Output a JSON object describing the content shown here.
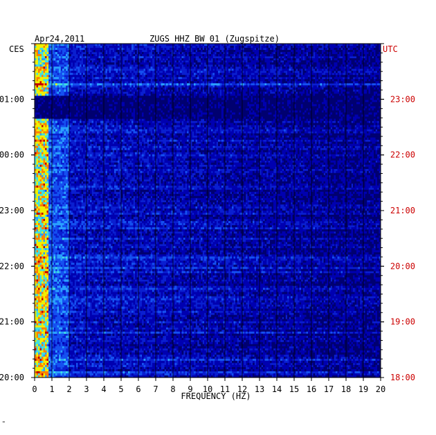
{
  "header": {
    "date": "Apr24,2011",
    "title": "ZUGS HHZ BW 01 (Zugspitze)",
    "left_zone": "CES",
    "right_zone": "UTC"
  },
  "footer_mark": "\"",
  "colors": {
    "background_blue": "#0a1fd0",
    "axis": "#000000",
    "utc_labels": "#cc0000",
    "local_labels": "#000000"
  },
  "chart_data": {
    "type": "heatmap",
    "title": "ZUGS HHZ BW 01 (Zugspitze)",
    "xlabel": "FREQUENCY (HZ)",
    "ylabel": "",
    "xlim": [
      0,
      20
    ],
    "x_ticks": [
      "0",
      "1",
      "2",
      "3",
      "4",
      "5",
      "6",
      "7",
      "8",
      "9",
      "10",
      "11",
      "12",
      "13",
      "14",
      "15",
      "16",
      "17",
      "18",
      "19",
      "20"
    ],
    "y_ticks_left": [
      "01:00",
      "00:00",
      "23:00",
      "22:00",
      "21:00",
      "20:00"
    ],
    "y_ticks_right": [
      "23:00",
      "22:00",
      "21:00",
      "20:00",
      "19:00",
      "18:00"
    ],
    "time_span_hours": 6,
    "colormap": [
      "#000070",
      "#0000b0",
      "#0a1fd0",
      "#1550f0",
      "#2aa0ff",
      "#40e0e0",
      "#f0f000",
      "#ff8000",
      "#c00000"
    ],
    "notable_features": {
      "quiet_band_utc": "23:00",
      "low_freq_energy_hz": [
        0,
        1
      ]
    },
    "grid": "vertical lines at each Hz"
  }
}
